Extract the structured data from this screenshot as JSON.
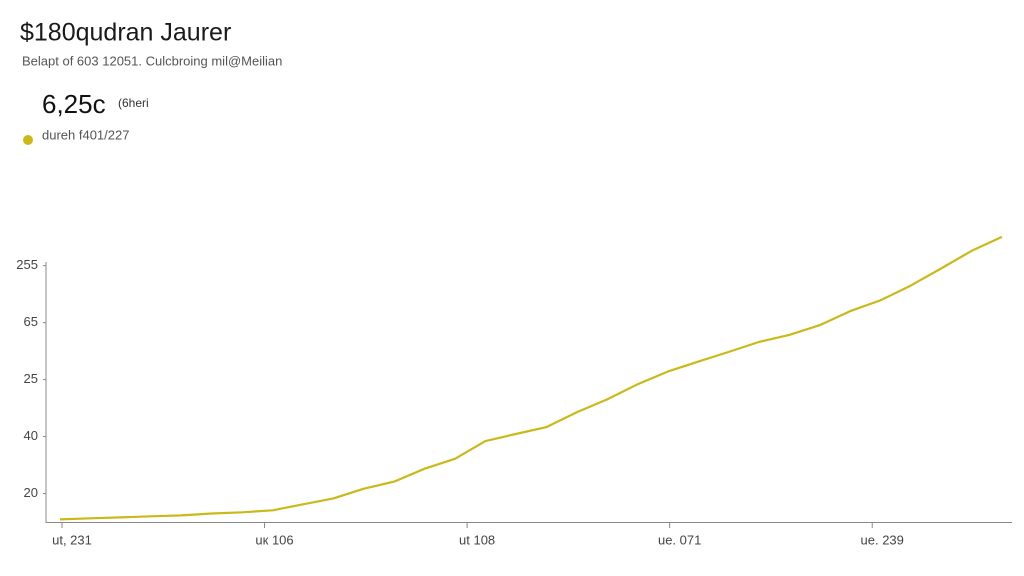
{
  "chart_data": {
    "type": "line",
    "title": "$180qudran Jaurer",
    "subtitle": "Belapt of 603 12051. Culcbroing mil@Meilian",
    "headline_value": "6,25c",
    "headline_unit": "(6heri",
    "x": [
      0,
      3,
      6,
      9,
      12,
      15,
      18,
      21,
      24,
      27,
      30,
      33,
      36,
      39,
      42,
      45,
      48,
      51,
      54,
      57,
      60,
      63,
      66,
      69,
      72,
      75,
      78,
      81,
      84,
      87,
      90,
      93
    ],
    "series": [
      {
        "name": "dureh f401/227",
        "color": "#cbb919",
        "values": [
          10.9,
          11.3,
          11.6,
          12,
          12.3,
          13,
          13.4,
          14.1,
          16.2,
          18.3,
          21.7,
          24.2,
          28.7,
          32.2,
          38.4,
          40.9,
          43.3,
          48.5,
          53,
          58.3,
          62.8,
          66.3,
          69.7,
          73.2,
          75.7,
          79.1,
          84,
          87.8,
          93,
          99,
          105.2,
          110.1
        ]
      }
    ],
    "xlim": [
      0,
      94
    ],
    "xticks": [
      {
        "value": 0,
        "label": "ut, 231"
      },
      {
        "value": 20,
        "label": "uк 106"
      },
      {
        "value": 40,
        "label": "ut 108"
      },
      {
        "value": 60,
        "label": "ue. 071"
      },
      {
        "value": 80,
        "label": "ue. 239"
      }
    ],
    "ylim": [
      10,
      112
    ],
    "yticks": [
      20,
      40,
      {
        "value": 60,
        "label": "25"
      },
      {
        "value": 80,
        "label": "65"
      },
      {
        "value": 100,
        "label": "255"
      }
    ],
    "grid": false
  }
}
